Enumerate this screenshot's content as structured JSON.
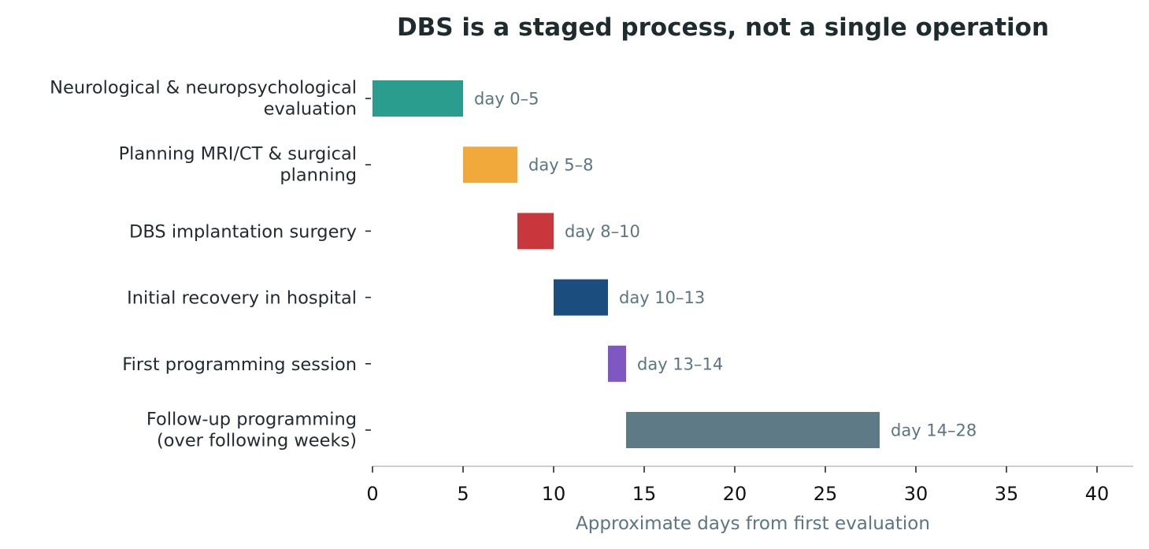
{
  "chart_data": {
    "type": "bar",
    "orientation": "horizontal-gantt",
    "title": "DBS is a staged process, not a single operation",
    "xlabel": "Approximate days from first evaluation",
    "ylabel": "",
    "xlim": [
      0,
      42
    ],
    "xticks": [
      0,
      5,
      10,
      15,
      20,
      25,
      30,
      35,
      40
    ],
    "grid": false,
    "legend": "none",
    "tasks": [
      {
        "label_lines": [
          "Neurological & neuropsychological",
          "evaluation"
        ],
        "start": 0,
        "end": 5,
        "color": "#2a9d8f",
        "data_label": "day 0–5"
      },
      {
        "label_lines": [
          "Planning MRI/CT & surgical",
          "planning"
        ],
        "start": 5,
        "end": 8,
        "color": "#f2a93b",
        "data_label": "day 5–8"
      },
      {
        "label_lines": [
          "DBS implantation surgery"
        ],
        "start": 8,
        "end": 10,
        "color": "#c8373b",
        "data_label": "day 8–10"
      },
      {
        "label_lines": [
          "Initial recovery in hospital"
        ],
        "start": 10,
        "end": 13,
        "color": "#1b4e7e",
        "data_label": "day 10–13"
      },
      {
        "label_lines": [
          "First programming session"
        ],
        "start": 13,
        "end": 14,
        "color": "#7e57c2",
        "data_label": "day 13–14"
      },
      {
        "label_lines": [
          "Follow-up programming",
          "(over following weeks)"
        ],
        "start": 14,
        "end": 28,
        "color": "#5e7a87",
        "data_label": "day 14–28"
      }
    ]
  }
}
